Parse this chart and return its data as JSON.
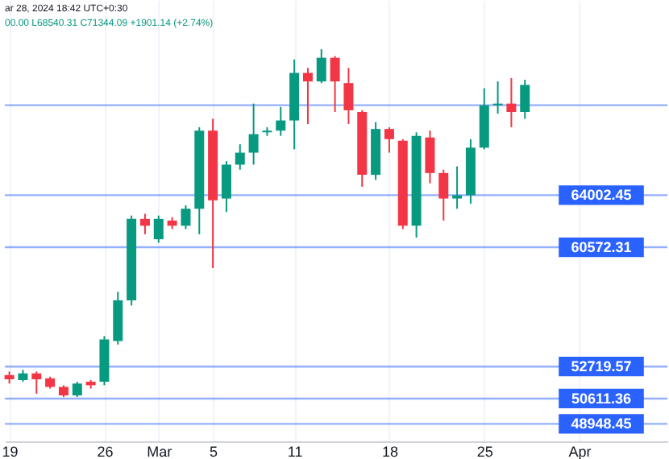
{
  "chart_data": {
    "type": "candlestick",
    "annotations": [
      "ar 28, 2024 18:42 UTC+0:30",
      "00.00 L68540.31 C71344.09 +1901.14 (+2.74%)"
    ],
    "x": [
      "2024-02-19",
      "2024-02-20",
      "2024-02-21",
      "2024-02-22",
      "2024-02-23",
      "2024-02-24",
      "2024-02-25",
      "2024-02-26",
      "2024-02-27",
      "2024-02-28",
      "2024-02-29",
      "2024-03-01",
      "2024-03-02",
      "2024-03-03",
      "2024-03-04",
      "2024-03-05",
      "2024-03-06",
      "2024-03-07",
      "2024-03-08",
      "2024-03-09",
      "2024-03-10",
      "2024-03-11",
      "2024-03-12",
      "2024-03-13",
      "2024-03-14",
      "2024-03-15",
      "2024-03-16",
      "2024-03-17",
      "2024-03-18",
      "2024-03-19",
      "2024-03-20",
      "2024-03-21",
      "2024-03-22",
      "2024-03-23",
      "2024-03-24",
      "2024-03-25",
      "2024-03-26",
      "2024-03-27",
      "2024-03-28"
    ],
    "ohlc": [
      [
        52160,
        52390,
        51600,
        51880
      ],
      [
        51830,
        52500,
        51720,
        52270
      ],
      [
        52270,
        52390,
        50930,
        51880
      ],
      [
        51940,
        52050,
        51270,
        51380
      ],
      [
        51380,
        51490,
        50710,
        50820
      ],
      [
        50820,
        51720,
        50710,
        51600
      ],
      [
        51720,
        51830,
        51270,
        51490
      ],
      [
        51720,
        54730,
        51490,
        54510
      ],
      [
        54400,
        57640,
        54170,
        57080
      ],
      [
        57080,
        62660,
        56740,
        62440
      ],
      [
        62440,
        62770,
        61430,
        61990
      ],
      [
        61100,
        62660,
        60870,
        62440
      ],
      [
        62330,
        62550,
        61770,
        61990
      ],
      [
        61990,
        63330,
        61770,
        63110
      ],
      [
        63110,
        68470,
        61430,
        68250
      ],
      [
        68250,
        69030,
        59200,
        63670
      ],
      [
        63780,
        66240,
        62890,
        66010
      ],
      [
        66010,
        67350,
        65680,
        66800
      ],
      [
        66800,
        70030,
        66010,
        68020
      ],
      [
        68140,
        68470,
        67910,
        68250
      ],
      [
        68250,
        69810,
        67910,
        68920
      ],
      [
        68920,
        72940,
        67020,
        72050
      ],
      [
        72050,
        72380,
        68690,
        71490
      ],
      [
        71490,
        73610,
        71380,
        73050
      ],
      [
        73050,
        73160,
        69480,
        71490
      ],
      [
        71380,
        72380,
        68690,
        69590
      ],
      [
        69480,
        69590,
        64560,
        65340
      ],
      [
        65340,
        68810,
        65010,
        68360
      ],
      [
        68360,
        68470,
        66800,
        67690
      ],
      [
        67580,
        67690,
        61770,
        61990
      ],
      [
        61990,
        68140,
        61210,
        67910
      ],
      [
        67800,
        68250,
        64780,
        65460
      ],
      [
        65460,
        65680,
        62330,
        63780
      ],
      [
        63780,
        65900,
        63110,
        64000
      ],
      [
        64000,
        67690,
        63440,
        67130
      ],
      [
        67130,
        71040,
        67020,
        69920
      ],
      [
        69920,
        71490,
        69360,
        70030
      ],
      [
        70030,
        71710,
        68470,
        69480
      ],
      [
        69480,
        71600,
        69030,
        71260
      ]
    ],
    "colors": [
      "#f23645",
      "#089981",
      "#f23645",
      "#f23645",
      "#f23645",
      "#089981",
      "#f23645",
      "#089981",
      "#089981",
      "#089981",
      "#f23645",
      "#089981",
      "#f23645",
      "#089981",
      "#089981",
      "#f23645",
      "#089981",
      "#089981",
      "#089981",
      "#089981",
      "#089981",
      "#089981",
      "#f23645",
      "#089981",
      "#f23645",
      "#f23645",
      "#f23645",
      "#089981",
      "#f23645",
      "#f23645",
      "#089981",
      "#f23645",
      "#f23645",
      "#089981",
      "#089981",
      "#089981",
      "#089981",
      "#f23645",
      "#089981"
    ],
    "xlim": [
      "2024-02-18T16:00",
      "2024-04-07T12:00"
    ],
    "xticks": [
      {
        "value": "2024-02-19",
        "label": "19"
      },
      {
        "value": "2024-02-26",
        "label": "26"
      },
      {
        "value": "2024-03-01",
        "label": "Mar"
      },
      {
        "value": "2024-03-05",
        "label": "5"
      },
      {
        "value": "2024-03-11",
        "label": "11"
      },
      {
        "value": "2024-03-18",
        "label": "18"
      },
      {
        "value": "2024-03-25",
        "label": "25"
      },
      {
        "value": "2024-04-01",
        "label": "Apr"
      }
    ],
    "ylim": [
      47800,
      76850
    ],
    "ref_lines": [
      {
        "axis": "y",
        "value": 69923,
        "label": null,
        "color": "#2962ff"
      },
      {
        "axis": "y",
        "value": 64002.45,
        "label": "64002.45",
        "color": "#2962ff"
      },
      {
        "axis": "y",
        "value": 60572.31,
        "label": "60572.31",
        "color": "#2962ff"
      },
      {
        "axis": "y",
        "value": 52719.57,
        "label": "52719.57",
        "color": "#2962ff"
      },
      {
        "axis": "y",
        "value": 50611.36,
        "label": "50611.36",
        "color": "#2962ff"
      },
      {
        "axis": "y",
        "value": 48948.45,
        "label": "48948.45",
        "color": "#2962ff"
      }
    ],
    "grid": "x",
    "tick_labels": "x"
  }
}
